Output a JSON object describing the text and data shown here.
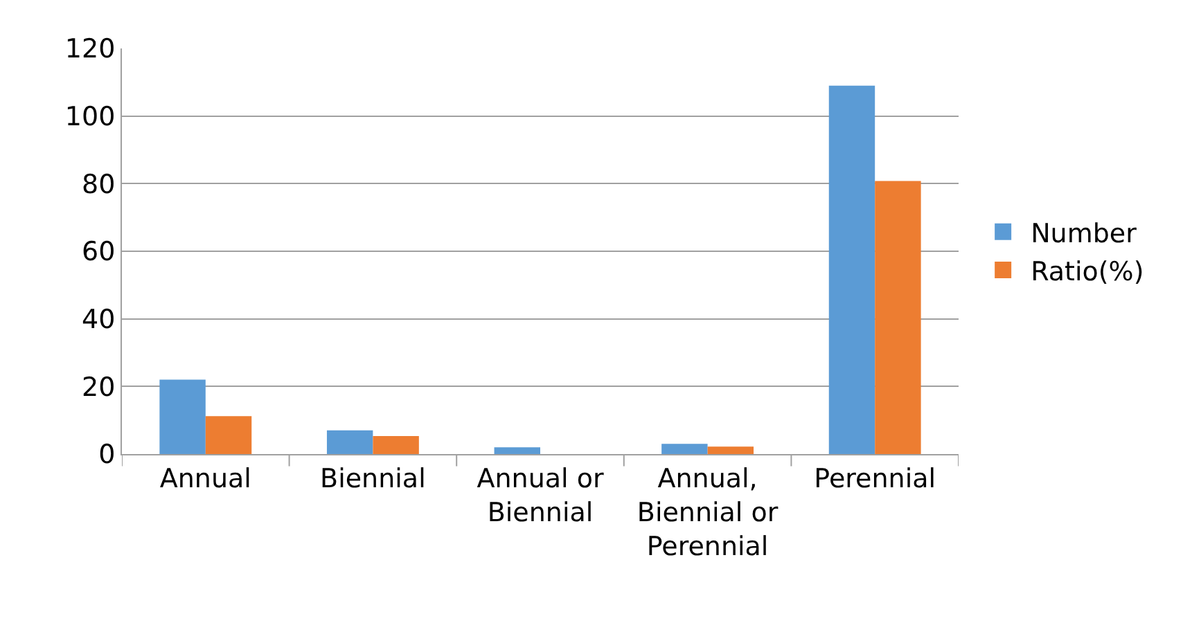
{
  "chart_data": {
    "type": "bar",
    "categories": [
      "Annual",
      "Biennial",
      "Annual or Biennial",
      "Annual, Biennial or Perennial",
      "Perennial"
    ],
    "series": [
      {
        "name": "Number",
        "color": "#5b9bd5",
        "values": [
          22,
          7,
          2,
          3,
          109
        ]
      },
      {
        "name": "Ratio(%)",
        "color": "#ed7d31",
        "values": [
          11.2,
          5.3,
          0,
          2.2,
          80.8
        ]
      }
    ],
    "ylim": [
      0,
      120
    ],
    "yticks": [
      0,
      20,
      40,
      60,
      80,
      100,
      120
    ],
    "grid": "y",
    "legend": "right"
  }
}
